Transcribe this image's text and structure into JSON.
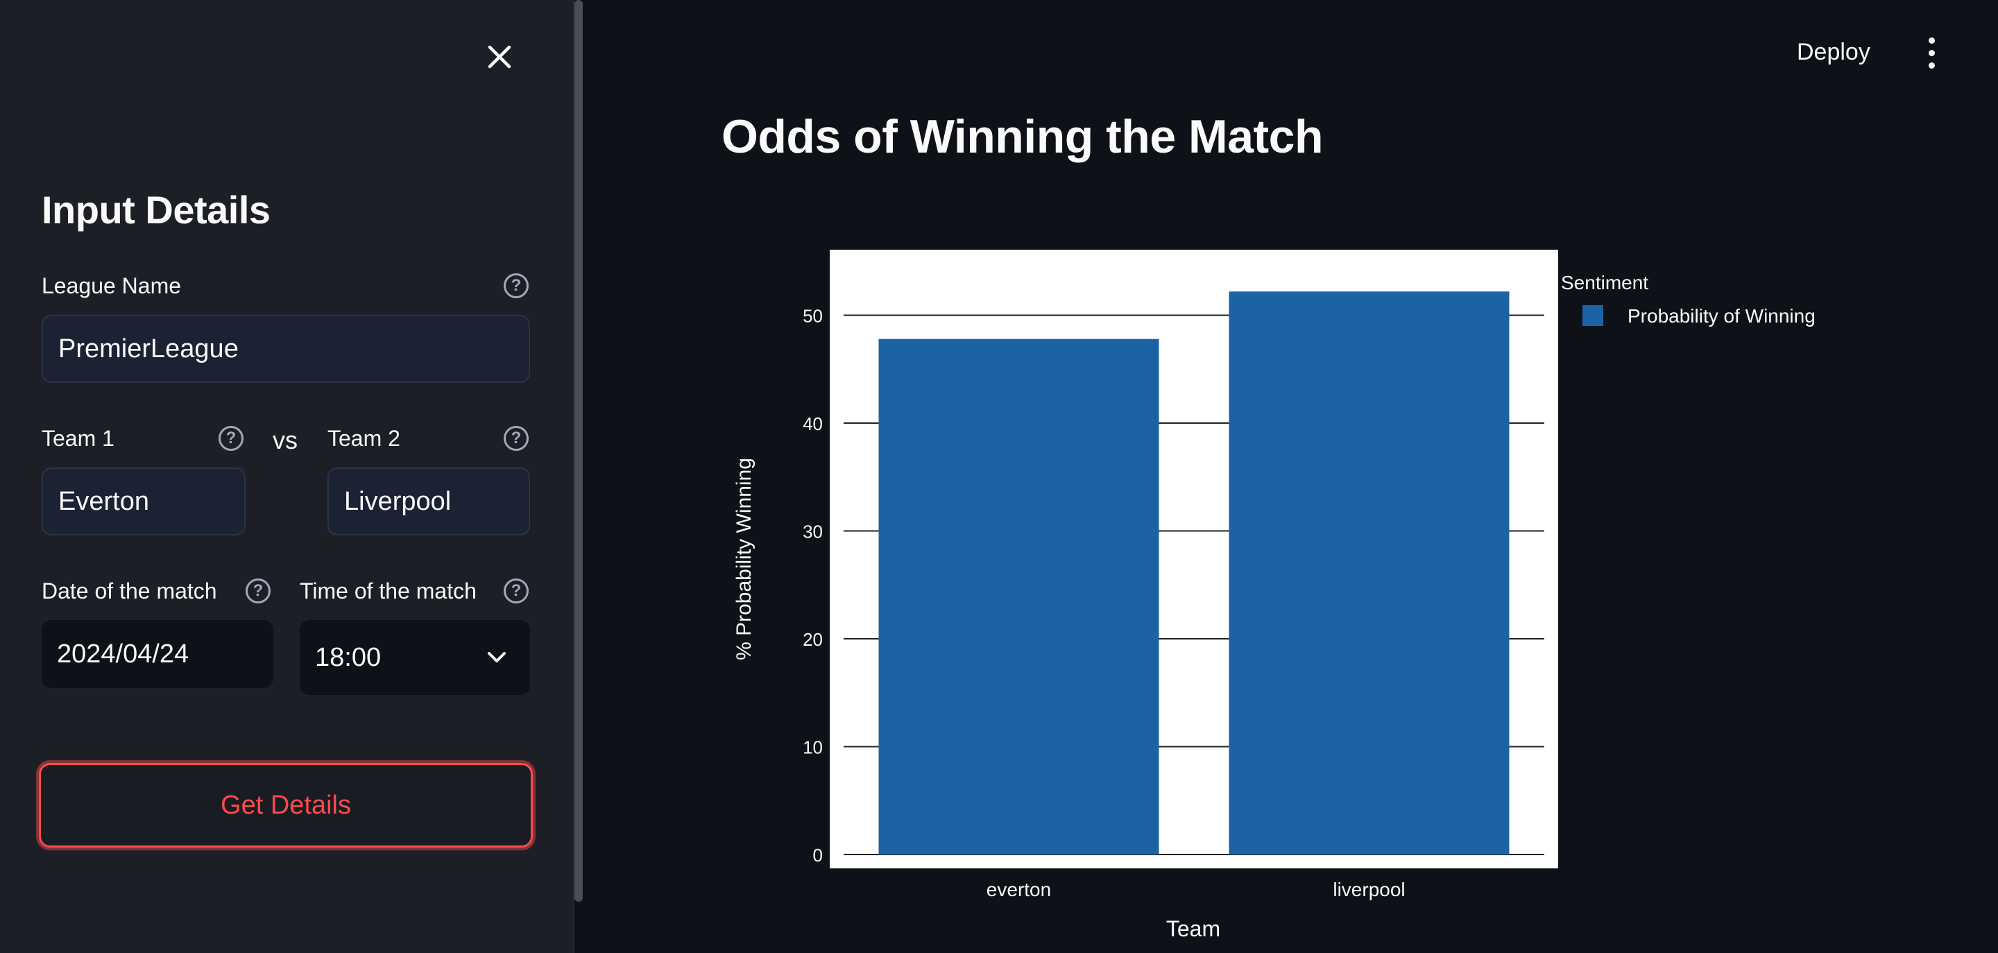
{
  "sidebar": {
    "title": "Input Details",
    "league": {
      "label": "League Name",
      "value": "PremierLeague"
    },
    "team1": {
      "label": "Team 1",
      "value": "Everton"
    },
    "vs_label": "vs",
    "team2": {
      "label": "Team 2",
      "value": "Liverpool"
    },
    "date": {
      "label": "Date of the match",
      "value": "2024/04/24"
    },
    "time": {
      "label": "Time of the match",
      "value": "18:00"
    },
    "submit_label": "Get Details",
    "help_glyph": "?"
  },
  "header": {
    "deploy_label": "Deploy"
  },
  "main": {
    "title": "Odds of Winning the Match"
  },
  "colors": {
    "accent": "#ff4b4b",
    "bar": "#1c63a6",
    "background": "#0e1117",
    "sidebar": "#1d1f27"
  },
  "chart_data": {
    "type": "bar",
    "categories": [
      "everton",
      "liverpool"
    ],
    "series": [
      {
        "name": "Probability of Winning",
        "values": [
          47.8,
          52.2
        ]
      }
    ],
    "xlabel": "Team",
    "ylabel": "% Probability Winning",
    "ylim": [
      0,
      55
    ],
    "yticks": [
      0,
      10,
      20,
      30,
      40,
      50
    ],
    "legend_title": "Sentiment",
    "legend_position": "right",
    "grid": true
  }
}
